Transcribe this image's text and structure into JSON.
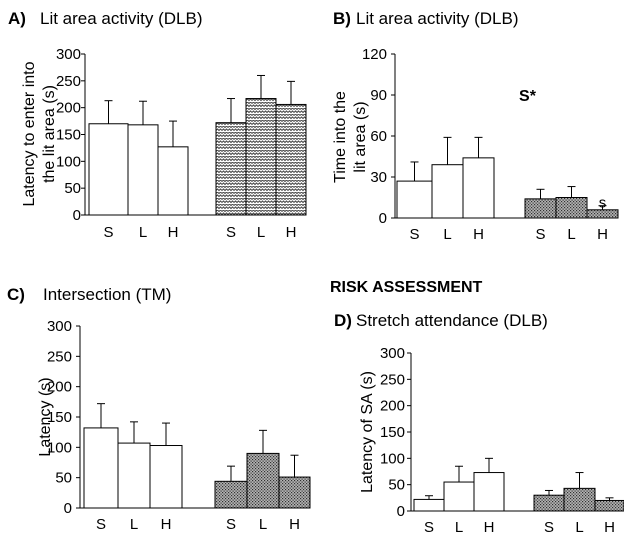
{
  "section_heading": "RISK ASSESSMENT",
  "chart_data": [
    {
      "id": "A",
      "type": "bar",
      "panel_letter": "A)",
      "title": "Lit area activity (DLB)",
      "ylabel_lines": [
        "Latency to enter into",
        "the lit area (s)"
      ],
      "ylim": [
        0,
        300
      ],
      "yticks": [
        0,
        50,
        100,
        150,
        200,
        250,
        300
      ],
      "grid": false,
      "groups": [
        {
          "fill": "white",
          "bars": [
            {
              "label": "S",
              "value": 170,
              "error": 43
            },
            {
              "label": "L",
              "value": 168,
              "error": 44
            },
            {
              "label": "H",
              "value": 127,
              "error": 48
            }
          ]
        },
        {
          "fill": "zigzag",
          "bars": [
            {
              "label": "S",
              "value": 172,
              "error": 45
            },
            {
              "label": "L",
              "value": 217,
              "error": 43
            },
            {
              "label": "H",
              "value": 206,
              "error": 43
            }
          ]
        }
      ],
      "annotations": []
    },
    {
      "id": "B",
      "type": "bar",
      "panel_letter": "B)",
      "title": "Lit area activity (DLB)",
      "ylabel_lines": [
        "Time into the",
        "lit area (s)"
      ],
      "ylim": [
        0,
        120
      ],
      "yticks": [
        0,
        30,
        60,
        90,
        120
      ],
      "grid": false,
      "groups": [
        {
          "fill": "white",
          "bars": [
            {
              "label": "S",
              "value": 27,
              "error": 14
            },
            {
              "label": "L",
              "value": 39,
              "error": 20
            },
            {
              "label": "H",
              "value": 44,
              "error": 15
            }
          ]
        },
        {
          "fill": "dots",
          "bars": [
            {
              "label": "S",
              "value": 14,
              "error": 7
            },
            {
              "label": "L",
              "value": 15,
              "error": 8
            },
            {
              "label": "H",
              "value": 6,
              "error": 3
            }
          ]
        }
      ],
      "annotations": [
        {
          "text": "S*",
          "style": "bold",
          "at_value": 90,
          "at_group": "between"
        },
        {
          "text": "s",
          "style": "normal",
          "at_value": 12,
          "at_group": 1,
          "at_bar": 2
        }
      ]
    },
    {
      "id": "C",
      "type": "bar",
      "panel_letter": "C)",
      "title": "Intersection (TM)",
      "ylabel_lines": [
        "Latency (s)"
      ],
      "ylim": [
        0,
        300
      ],
      "yticks": [
        0,
        50,
        100,
        150,
        200,
        250,
        300
      ],
      "grid": false,
      "groups": [
        {
          "fill": "white",
          "bars": [
            {
              "label": "S",
              "value": 132,
              "error": 40
            },
            {
              "label": "L",
              "value": 107,
              "error": 35
            },
            {
              "label": "H",
              "value": 103,
              "error": 37
            }
          ]
        },
        {
          "fill": "dots",
          "bars": [
            {
              "label": "S",
              "value": 44,
              "error": 25
            },
            {
              "label": "L",
              "value": 90,
              "error": 38
            },
            {
              "label": "H",
              "value": 51,
              "error": 36
            }
          ]
        }
      ],
      "annotations": []
    },
    {
      "id": "D",
      "type": "bar",
      "panel_letter": "D)",
      "title": "Stretch attendance (DLB)",
      "ylabel_lines": [
        "Latency of SA (s)"
      ],
      "ylim": [
        0,
        300
      ],
      "yticks": [
        0,
        50,
        100,
        150,
        200,
        250,
        300
      ],
      "grid": false,
      "groups": [
        {
          "fill": "white",
          "bars": [
            {
              "label": "S",
              "value": 22,
              "error": 7
            },
            {
              "label": "L",
              "value": 55,
              "error": 30
            },
            {
              "label": "H",
              "value": 73,
              "error": 27
            }
          ]
        },
        {
          "fill": "dots",
          "bars": [
            {
              "label": "S",
              "value": 30,
              "error": 9
            },
            {
              "label": "L",
              "value": 43,
              "error": 30
            },
            {
              "label": "H",
              "value": 20,
              "error": 5
            }
          ]
        }
      ],
      "annotations": []
    }
  ]
}
